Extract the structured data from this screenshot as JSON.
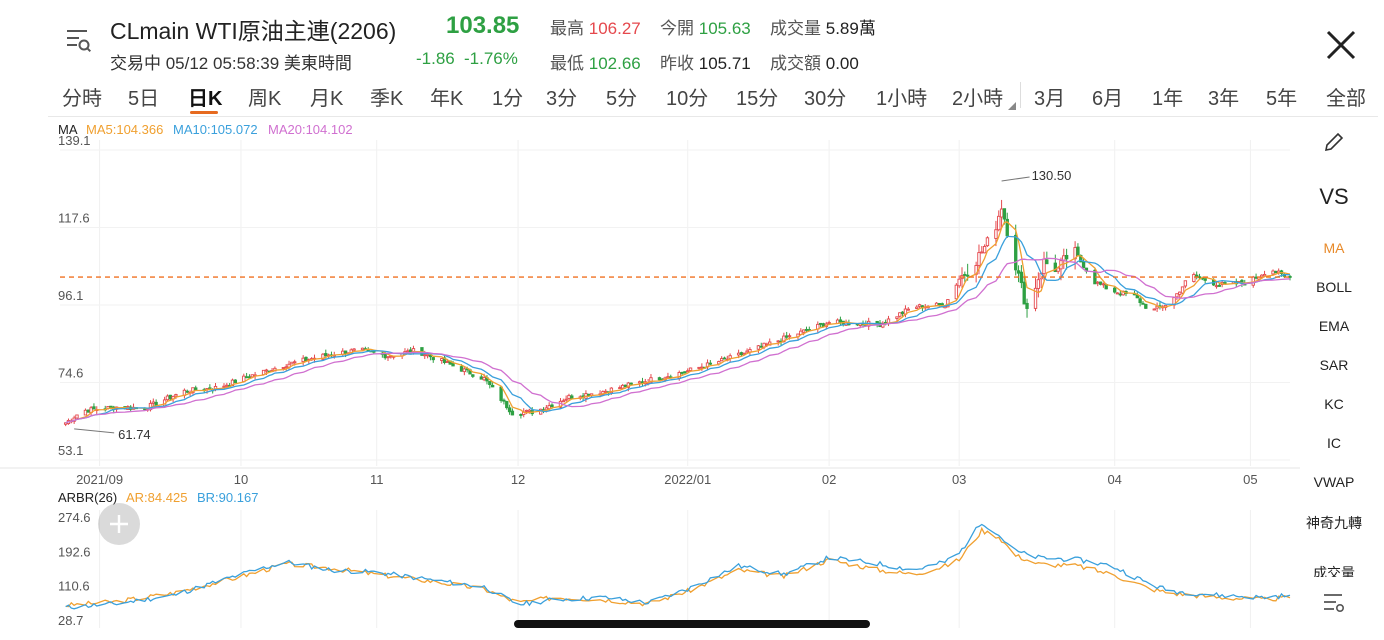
{
  "header": {
    "symbol": "CLmain WTI原油主連(2206)",
    "last": "103.85",
    "status": "交易中 05/12 05:58:39 美東時間",
    "change": "-1.86",
    "change_pct": "-1.76%",
    "high_label": "最高",
    "high": "106.27",
    "open_label": "今開",
    "open": "105.63",
    "volume_label": "成交量",
    "volume": "5.89萬",
    "low_label": "最低",
    "low": "102.66",
    "prev_label": "昨收",
    "prev": "105.71",
    "turnover_label": "成交額",
    "turnover": "0.00"
  },
  "tabs": [
    "分時",
    "5日",
    "日K",
    "周K",
    "月K",
    "季K",
    "年K",
    "1分",
    "3分",
    "5分",
    "10分",
    "15分",
    "30分",
    "1小時",
    "2小時",
    "3月",
    "6月",
    "1年",
    "3年",
    "5年",
    "全部"
  ],
  "active_tab": "日K",
  "sidebar": [
    "MA",
    "BOLL",
    "EMA",
    "SAR",
    "KC",
    "IC",
    "VWAP",
    "神奇九轉",
    "成交量"
  ],
  "sidebar_vs": "VS",
  "colors": {
    "up": "#e5484d",
    "down": "#2ea043",
    "ma5": "#f0a030",
    "ma10": "#3aa0dc",
    "ma20": "#d070d0",
    "ar": "#f0a030",
    "br": "#3aa0dc",
    "ref": "#f07020"
  },
  "chart_data": [
    {
      "type": "candlestick",
      "title": "",
      "legend_name": "MA",
      "ma_labels": [
        "MA5:104.366",
        "MA10:105.072",
        "MA20:104.102"
      ],
      "y_ticks": [
        "139.1",
        "117.6",
        "96.1",
        "74.6",
        "53.1"
      ],
      "y_tick_values": [
        139.1,
        117.6,
        96.1,
        74.6,
        53.1
      ],
      "ylim": [
        53.1,
        139.1
      ],
      "x_ticks": [
        "2021/09",
        "10",
        "11",
        "12",
        "2022/01",
        "02",
        "03",
        "04",
        "05"
      ],
      "x_tick_days": [
        14,
        64,
        112,
        162,
        222,
        272,
        318,
        373,
        421
      ],
      "annotations": [
        {
          "text": "130.50",
          "day": 333,
          "value": 130.5
        },
        {
          "text": "61.74",
          "day": 5,
          "value": 61.74
        }
      ],
      "reference_line": 103.85,
      "start_date": "2021-08-20",
      "end_date": "2022-05-11",
      "series": {
        "close_anchors": [
          [
            0,
            62.3
          ],
          [
            8,
            66.8
          ],
          [
            20,
            67.8
          ],
          [
            30,
            67.5
          ],
          [
            44,
            72.2
          ],
          [
            56,
            73.2
          ],
          [
            66,
            76.1
          ],
          [
            80,
            79.6
          ],
          [
            96,
            82.5
          ],
          [
            106,
            83.6
          ],
          [
            116,
            82.0
          ],
          [
            126,
            83.5
          ],
          [
            136,
            80.2
          ],
          [
            150,
            75.7
          ],
          [
            160,
            66.2
          ],
          [
            168,
            66.5
          ],
          [
            180,
            70.6
          ],
          [
            192,
            72.1
          ],
          [
            208,
            75.2
          ],
          [
            222,
            77.8
          ],
          [
            238,
            81.6
          ],
          [
            256,
            86.8
          ],
          [
            272,
            91.3
          ],
          [
            290,
            90.8
          ],
          [
            302,
            95.6
          ],
          [
            313,
            96.2
          ],
          [
            318,
            103.4
          ],
          [
            324,
            108.6
          ],
          [
            330,
            115.7
          ],
          [
            333,
            123.7
          ],
          [
            337,
            110.2
          ],
          [
            342,
            95.0
          ],
          [
            348,
            108.0
          ],
          [
            353,
            105.9
          ],
          [
            358,
            111.6
          ],
          [
            366,
            102.5
          ],
          [
            372,
            100.1
          ],
          [
            380,
            98.5
          ],
          [
            386,
            94.3
          ],
          [
            393,
            97.0
          ],
          [
            400,
            104.5
          ],
          [
            410,
            101.7
          ],
          [
            420,
            102.3
          ],
          [
            428,
            106.2
          ],
          [
            433,
            103.9
          ],
          [
            435,
            103.85
          ]
        ],
        "ma5": "104.366",
        "ma10": "105.072",
        "ma20": "104.102"
      }
    },
    {
      "type": "line",
      "title": "",
      "legend_name": "ARBR(26)",
      "labels": [
        "AR:84.425",
        "BR:90.167"
      ],
      "y_ticks": [
        "274.6",
        "192.6",
        "110.6",
        "28.7"
      ],
      "y_tick_values": [
        274.6,
        192.6,
        110.6,
        28.7
      ],
      "ylim": [
        28.7,
        274.6
      ],
      "series": [
        {
          "name": "AR",
          "last": 84.425,
          "anchors": [
            [
              0,
              65
            ],
            [
              20,
              75
            ],
            [
              40,
              95
            ],
            [
              64,
              135
            ],
            [
              80,
              165
            ],
            [
              96,
              155
            ],
            [
              112,
              140
            ],
            [
              130,
              125
            ],
            [
              150,
              105
            ],
            [
              162,
              72
            ],
            [
              175,
              85
            ],
            [
              192,
              80
            ],
            [
              208,
              70
            ],
            [
              222,
              100
            ],
            [
              240,
              150
            ],
            [
              256,
              135
            ],
            [
              272,
              175
            ],
            [
              290,
              150
            ],
            [
              302,
              140
            ],
            [
              313,
              160
            ],
            [
              318,
              175
            ],
            [
              326,
              245
            ],
            [
              332,
              230
            ],
            [
              338,
              185
            ],
            [
              346,
              165
            ],
            [
              360,
              160
            ],
            [
              372,
              140
            ],
            [
              386,
              105
            ],
            [
              393,
              95
            ],
            [
              410,
              85
            ],
            [
              425,
              80
            ],
            [
              435,
              84.4
            ]
          ]
        },
        {
          "name": "BR",
          "last": 90.167,
          "anchors": [
            [
              0,
              60
            ],
            [
              20,
              70
            ],
            [
              40,
              90
            ],
            [
              64,
              140
            ],
            [
              80,
              170
            ],
            [
              96,
              150
            ],
            [
              112,
              145
            ],
            [
              130,
              128
            ],
            [
              150,
              110
            ],
            [
              162,
              68
            ],
            [
              175,
              80
            ],
            [
              192,
              85
            ],
            [
              208,
              72
            ],
            [
              222,
              105
            ],
            [
              240,
              160
            ],
            [
              256,
              140
            ],
            [
              272,
              180
            ],
            [
              290,
              165
            ],
            [
              302,
              150
            ],
            [
              313,
              170
            ],
            [
              318,
              190
            ],
            [
              326,
              265
            ],
            [
              331,
              240
            ],
            [
              338,
              195
            ],
            [
              346,
              180
            ],
            [
              360,
              175
            ],
            [
              372,
              160
            ],
            [
              386,
              115
            ],
            [
              393,
              100
            ],
            [
              410,
              90
            ],
            [
              425,
              85
            ],
            [
              435,
              90.2
            ]
          ]
        }
      ]
    }
  ]
}
